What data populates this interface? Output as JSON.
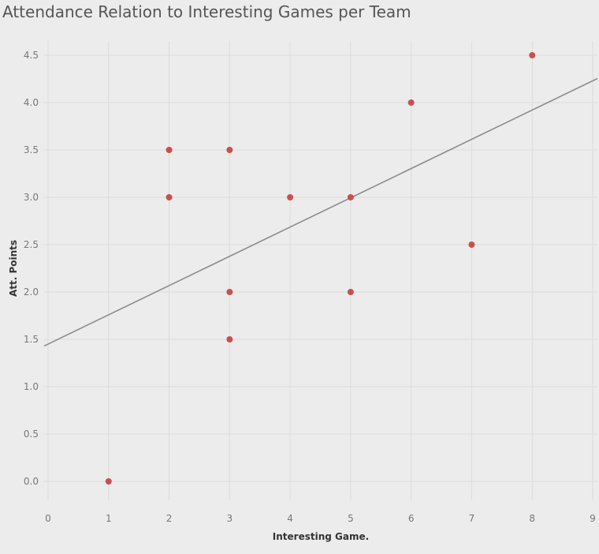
{
  "chart_data": {
    "type": "scatter",
    "title": "Attendance Relation to Interesting Games per Team",
    "xlabel": "Interesting Game.",
    "ylabel": "Att. Points",
    "xlim": [
      0,
      9
    ],
    "ylim": [
      0,
      4.5
    ],
    "x_ticks": [
      "0",
      "1",
      "2",
      "3",
      "4",
      "5",
      "6",
      "7",
      "8",
      "9"
    ],
    "y_ticks": [
      "0.0",
      "0.5",
      "1.0",
      "1.5",
      "2.0",
      "2.5",
      "3.0",
      "3.5",
      "4.0",
      "4.5"
    ],
    "grid": true,
    "legend": "none",
    "points": [
      {
        "x": 1,
        "y": 0.0
      },
      {
        "x": 2,
        "y": 3.5
      },
      {
        "x": 2,
        "y": 3.0
      },
      {
        "x": 3,
        "y": 3.5
      },
      {
        "x": 3,
        "y": 2.0
      },
      {
        "x": 3,
        "y": 1.5
      },
      {
        "x": 4,
        "y": 3.0
      },
      {
        "x": 5,
        "y": 3.0
      },
      {
        "x": 5,
        "y": 2.0
      },
      {
        "x": 6,
        "y": 4.0
      },
      {
        "x": 7,
        "y": 2.5
      },
      {
        "x": 8,
        "y": 4.5
      }
    ],
    "trend_line": {
      "x": [
        0,
        9
      ],
      "y": [
        1.45,
        4.23
      ]
    },
    "colors": {
      "point": "#c8504f",
      "trend": "#8c8c8c",
      "grid": "#dcdcdc",
      "background": "#ececec"
    }
  }
}
